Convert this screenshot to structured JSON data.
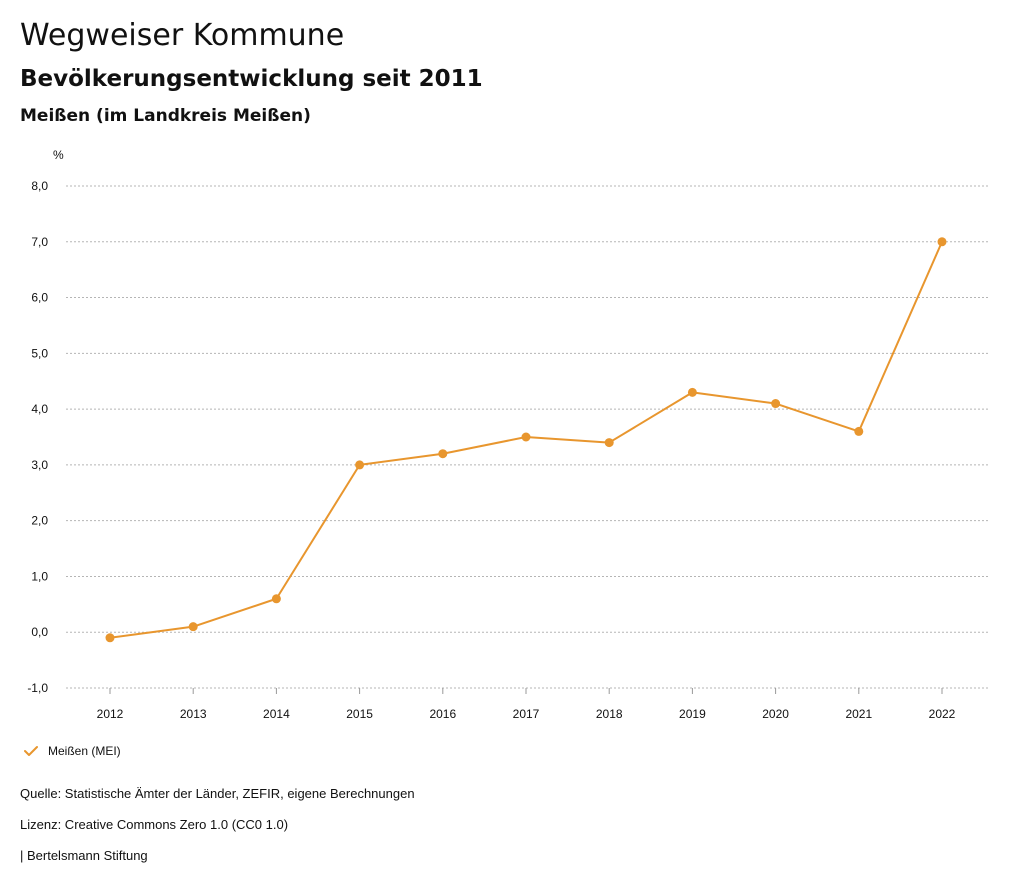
{
  "header": {
    "title": "Wegweiser Kommune",
    "subtitle": "Bevölkerungsentwicklung seit 2011",
    "region": "Meißen (im Landkreis Meißen)"
  },
  "chart_data": {
    "type": "line",
    "unit_label": "%",
    "categories": [
      "2012",
      "2013",
      "2014",
      "2015",
      "2016",
      "2017",
      "2018",
      "2019",
      "2020",
      "2021",
      "2022"
    ],
    "series": [
      {
        "name": "Meißen (MEI)",
        "color": "#e8962e",
        "values": [
          -0.1,
          0.1,
          0.6,
          3.0,
          3.2,
          3.5,
          3.4,
          4.3,
          4.1,
          3.6,
          7.0
        ]
      }
    ],
    "ylim": [
      -1.0,
      8.0
    ],
    "yticks": [
      -1.0,
      0.0,
      1.0,
      2.0,
      3.0,
      4.0,
      5.0,
      6.0,
      7.0,
      8.0
    ],
    "ytick_labels": [
      "-1,0",
      "0,0",
      "1,0",
      "2,0",
      "3,0",
      "4,0",
      "5,0",
      "6,0",
      "7,0",
      "8,0"
    ],
    "grid": true,
    "legend_position": "bottom-left"
  },
  "footer": {
    "source": "Quelle: Statistische Ämter der Länder, ZEFIR, eigene Berechnungen",
    "license": "Lizenz: Creative Commons Zero 1.0 (CC0 1.0)",
    "brand": "| Bertelsmann Stiftung"
  }
}
